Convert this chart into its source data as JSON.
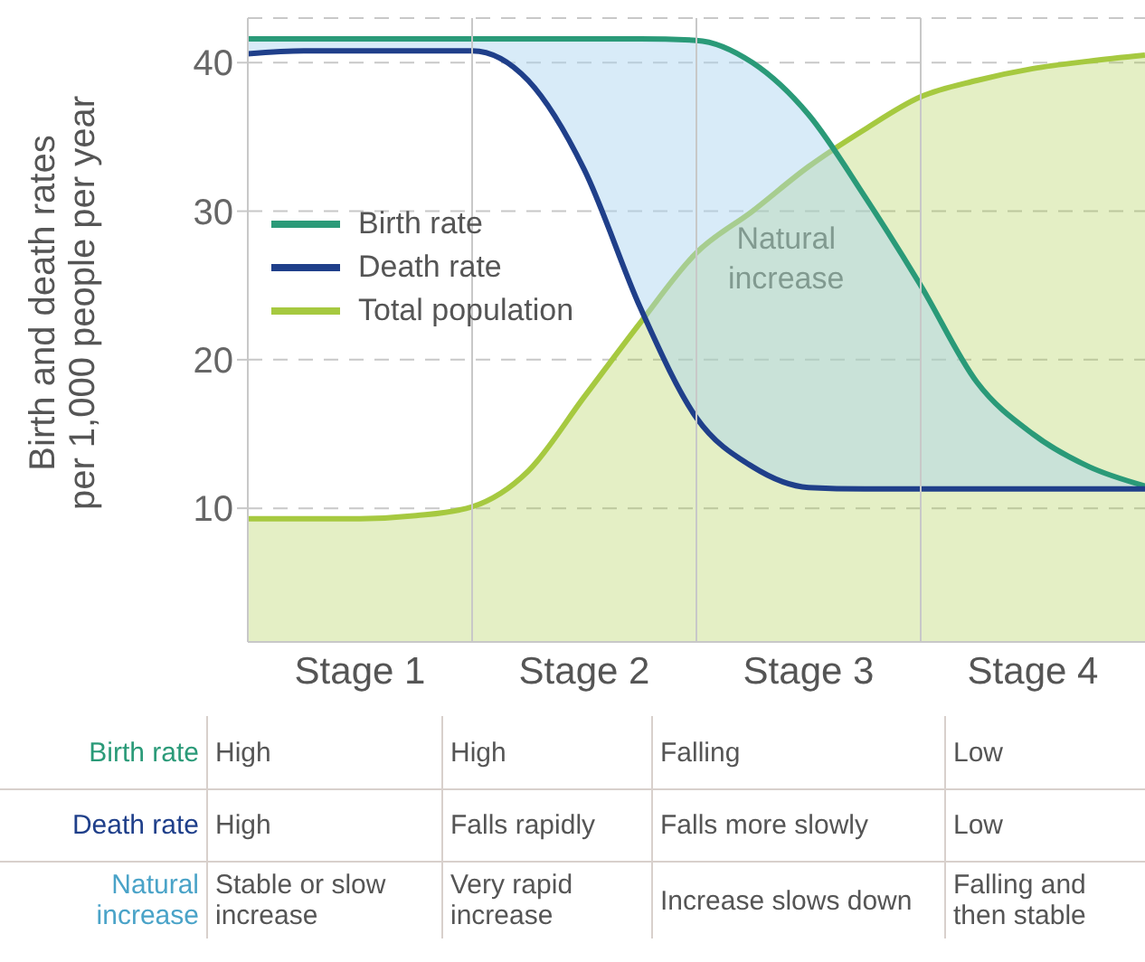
{
  "chart_data": {
    "type": "line",
    "ylabel": "Birth and death rates per 1,000 people per year",
    "categories": [
      null,
      null,
      "Stage 1",
      null,
      null,
      null,
      "Stage 2",
      null,
      null,
      null,
      "Stage 3",
      null,
      null,
      null,
      "Stage 4",
      null,
      null
    ],
    "series": [
      {
        "name": "Birth rate",
        "color": "#2a9a78",
        "values": [
          41.6,
          41.6,
          41.6,
          41.6,
          41.6,
          41.6,
          41.6,
          41.6,
          41.5,
          40,
          36.5,
          31,
          25,
          18.5,
          15,
          12.8,
          11.5
        ],
        "lower": [
          40.6,
          40.8,
          40.8,
          40.8,
          40.8,
          38.8,
          32.8,
          23.5,
          16.1,
          12.8,
          11.4,
          11.3,
          11.3,
          11.3,
          11.3,
          11.3,
          11.3
        ],
        "upper": [
          41.6,
          41.6,
          41.6,
          41.6,
          41.6,
          41.6,
          41.6,
          41.6,
          41.5,
          40,
          36.5,
          31,
          25,
          18.5,
          15,
          12.8,
          11.5
        ]
      },
      {
        "name": "Death rate",
        "color": "#1f3f8a",
        "values": [
          40.6,
          40.8,
          40.8,
          40.8,
          40.8,
          38.8,
          32.8,
          23.5,
          16.1,
          12.8,
          11.4,
          11.3,
          11.3,
          11.3,
          11.3,
          11.3,
          11.3
        ]
      },
      {
        "name": "Total population",
        "type": "area",
        "color": "#a6c940",
        "values": [
          9.3,
          9.3,
          9.3,
          9.5,
          10.1,
          12.5,
          17.5,
          22.5,
          27.2,
          30,
          33,
          35.5,
          37.7,
          38.8,
          39.6,
          40.1,
          40.5
        ]
      }
    ],
    "ylim": [
      1,
      43
    ],
    "yticks": [
      10,
      20,
      30,
      40
    ],
    "grid": true,
    "legend": "left",
    "line_style": "solid",
    "marker": "none",
    "annotations": [
      "Natural increase",
      "Birth rate",
      "High",
      "High",
      "Falling",
      "Low",
      "Death rate",
      "High",
      "Falls rapidly",
      "Falls more slowly",
      "Low",
      "Natural increase",
      "Stable or slow increase",
      "Very rapid increase",
      "Increase slows down",
      "Falling and then stable"
    ]
  }
}
